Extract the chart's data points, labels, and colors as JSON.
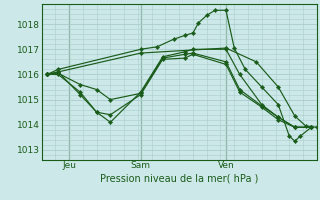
{
  "xlabel": "Pression niveau de la mer( hPa )",
  "bg_color": "#cce8e8",
  "grid_color": "#aacccc",
  "line_color": "#1a5c1a",
  "yticks": [
    1013,
    1014,
    1015,
    1016,
    1017,
    1018
  ],
  "xtick_labels": [
    "Jeu",
    "Sam",
    "Ven"
  ],
  "xtick_positions": [
    0.1,
    0.36,
    0.67
  ],
  "ylim": [
    1012.6,
    1018.8
  ],
  "xlim": [
    0.0,
    1.0
  ],
  "lines": [
    [
      0.02,
      1016.0,
      0.06,
      1016.1,
      0.36,
      1016.85,
      0.67,
      1017.05,
      0.78,
      1016.5,
      0.86,
      1015.5,
      0.92,
      1014.35,
      0.96,
      1013.95,
      1.0,
      1013.9
    ],
    [
      0.02,
      1016.0,
      0.06,
      1016.2,
      0.36,
      1017.0,
      0.42,
      1017.1,
      0.48,
      1017.4,
      0.52,
      1017.55,
      0.55,
      1017.65,
      0.57,
      1018.05,
      0.6,
      1018.35,
      0.63,
      1018.55,
      0.67,
      1018.55,
      0.7,
      1017.05,
      0.74,
      1016.2,
      0.8,
      1015.5,
      0.86,
      1014.8,
      0.9,
      1013.55,
      0.92,
      1013.35,
      0.94,
      1013.55,
      0.98,
      1013.9
    ],
    [
      0.02,
      1016.0,
      0.06,
      1016.1,
      0.14,
      1015.2,
      0.2,
      1014.5,
      0.25,
      1014.1,
      0.36,
      1015.3,
      0.44,
      1016.7,
      0.52,
      1016.9,
      0.55,
      1017.0,
      0.67,
      1017.0,
      0.72,
      1016.0,
      0.8,
      1014.8,
      0.86,
      1014.3,
      0.92,
      1013.9,
      0.98,
      1013.9
    ],
    [
      0.02,
      1016.0,
      0.06,
      1016.05,
      0.14,
      1015.6,
      0.2,
      1015.4,
      0.25,
      1015.0,
      0.36,
      1015.25,
      0.44,
      1016.65,
      0.52,
      1016.8,
      0.55,
      1016.85,
      0.67,
      1016.5,
      0.72,
      1015.4,
      0.8,
      1014.75,
      0.86,
      1014.3,
      0.92,
      1013.9,
      0.98,
      1013.9
    ],
    [
      0.02,
      1016.0,
      0.06,
      1016.0,
      0.14,
      1015.3,
      0.2,
      1014.5,
      0.25,
      1014.4,
      0.36,
      1015.2,
      0.44,
      1016.6,
      0.52,
      1016.65,
      0.55,
      1016.8,
      0.67,
      1016.4,
      0.72,
      1015.3,
      0.8,
      1014.7,
      0.86,
      1014.2,
      0.92,
      1013.9,
      0.98,
      1013.9
    ]
  ],
  "vlines": [
    0.1,
    0.36,
    0.67
  ]
}
